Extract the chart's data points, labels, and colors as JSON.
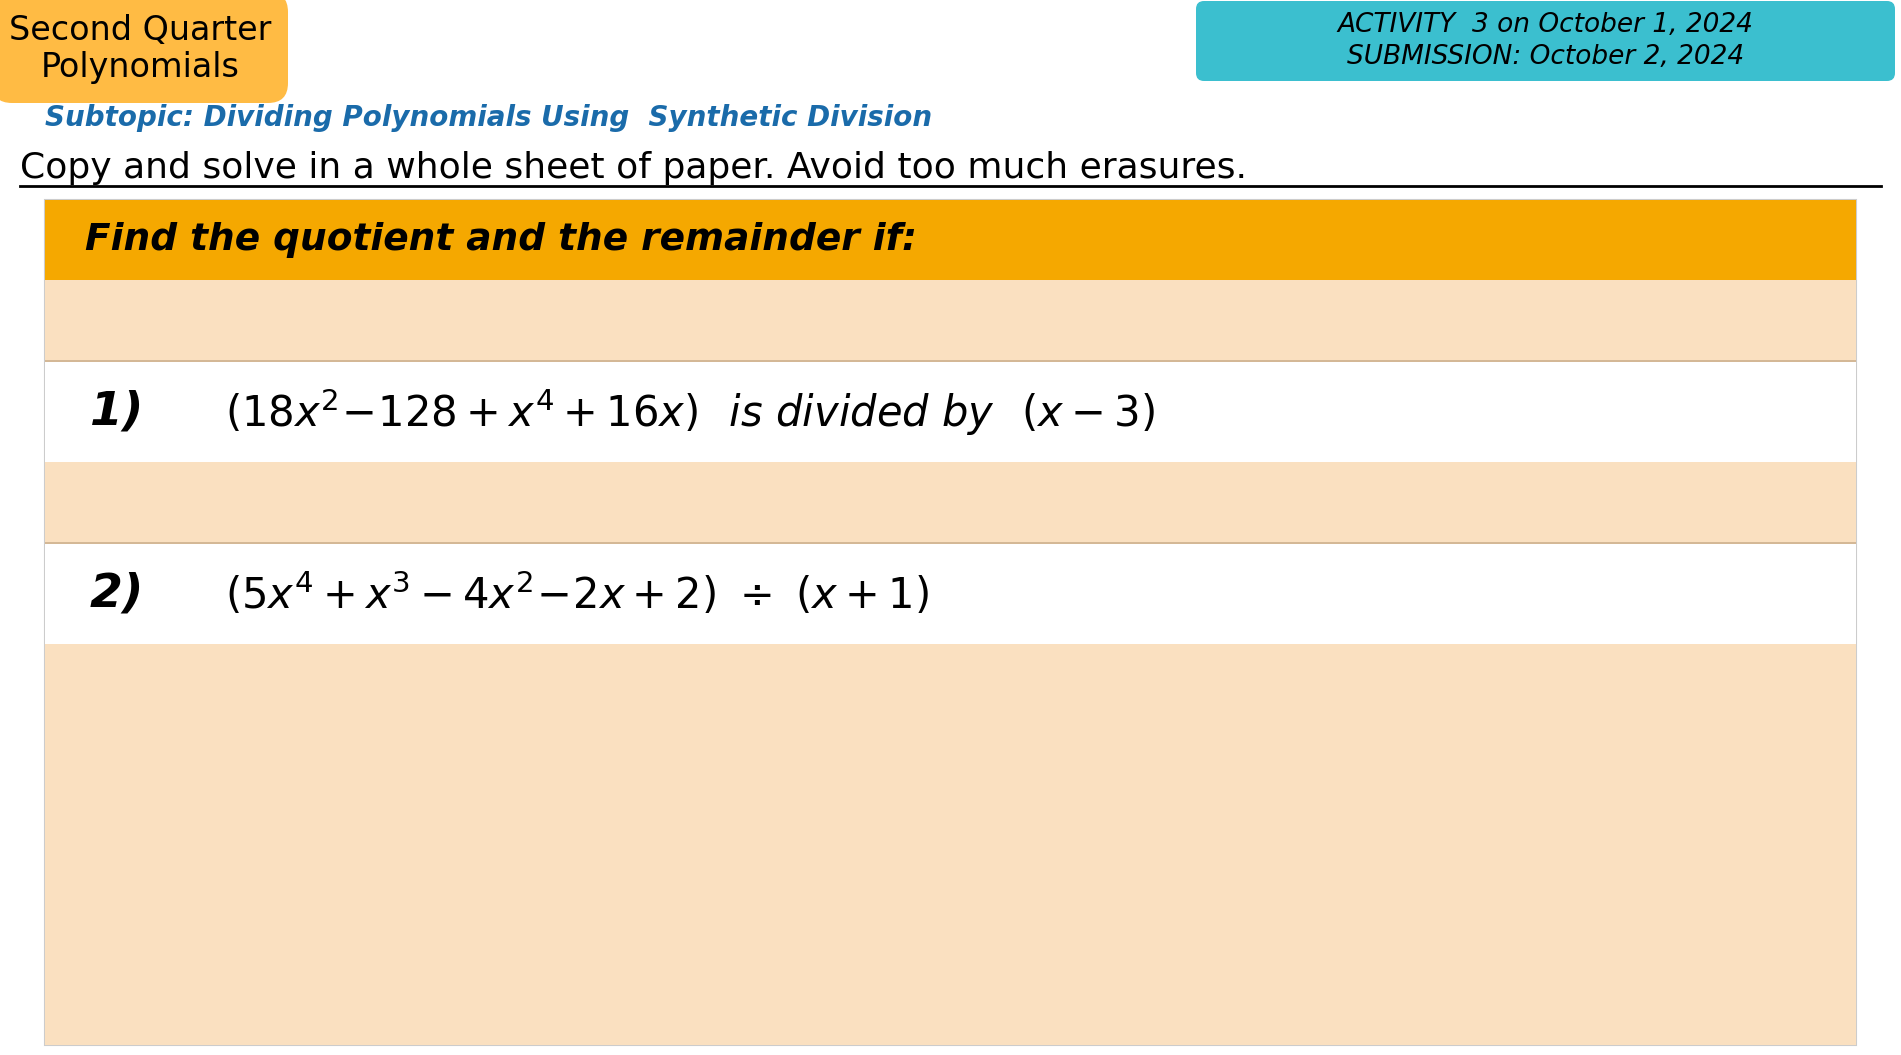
{
  "title_line1": "Second Quarter",
  "title_line2": "Polynomials",
  "title_bg_color": "#FFBB44",
  "activity_text_line1": "ACTIVITY  3 on October 1, 2024",
  "activity_text_line2": "SUBMISSION: October 2, 2024",
  "activity_bg_color": "#3BBFCF",
  "subtopic_text": "Subtopic: Dividing Polynomials Using  Synthetic Division",
  "instruction_text": "Copy and solve in a whole sheet of paper. Avoid too much erasures.",
  "find_box_text": "Find the quotient and the remainder if:",
  "find_box_bg": "#F5A800",
  "problem_band_bg": "#FAE0C0",
  "white_band_bg": "#FFFFFF",
  "bg_color": "#FFFFFF",
  "content_border": "#CCCCCC",
  "fig_width": 19.01,
  "fig_height": 10.55,
  "dpi": 100
}
